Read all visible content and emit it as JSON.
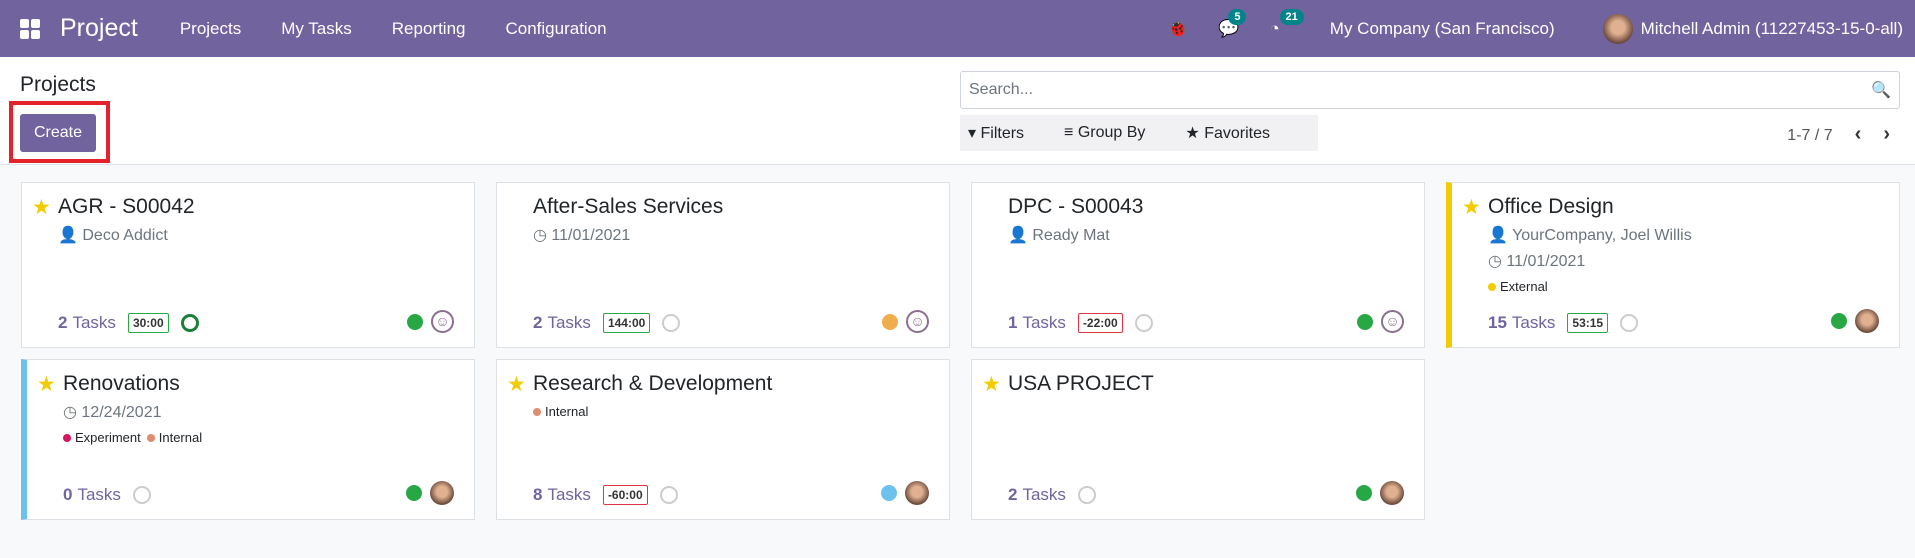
{
  "navbar": {
    "app": "Project",
    "menu": [
      "Projects",
      "My Tasks",
      "Reporting",
      "Configuration"
    ],
    "messages_count": "5",
    "activities_count": "21",
    "company": "My Company (San Francisco)",
    "user": "Mitchell Admin (11227453-15-0-all)"
  },
  "control": {
    "title": "Projects",
    "create": "Create",
    "search_placeholder": "Search...",
    "filters": "Filters",
    "group_by": "Group By",
    "favorites": "Favorites",
    "pager": "1-7 / 7"
  },
  "projects": [
    {
      "name": "AGR - S00042",
      "favorite": true,
      "customer": "Deco Addict",
      "tasks": "2",
      "tasks_label": "Tasks",
      "time": "30:00",
      "status": "#28a745"
    },
    {
      "name": "After-Sales Services",
      "favorite": false,
      "date": "11/01/2021",
      "tasks": "2",
      "tasks_label": "Tasks",
      "time": "144:00",
      "status": "#f0ad4e"
    },
    {
      "name": "DPC - S00043",
      "favorite": false,
      "customer": "Ready Mat",
      "tasks": "1",
      "tasks_label": "Tasks",
      "time": "-22:00",
      "status": "#28a745"
    },
    {
      "name": "Office Design",
      "favorite": true,
      "customer": "YourCompany, Joel Willis",
      "date": "11/01/2021",
      "tags": [
        "External"
      ],
      "tasks": "15",
      "tasks_label": "Tasks",
      "time": "53:15",
      "status": "#28a745",
      "color": "#f3cc00"
    },
    {
      "name": "Renovations",
      "favorite": true,
      "date": "12/24/2021",
      "tags": [
        "Experiment",
        "Internal"
      ],
      "tasks": "0",
      "tasks_label": "Tasks",
      "status": "#28a745",
      "color": "#6cc1ed"
    },
    {
      "name": "Research & Development",
      "favorite": true,
      "tags": [
        "Internal"
      ],
      "tasks": "8",
      "tasks_label": "Tasks",
      "time": "-60:00",
      "status": "#6cc1ed"
    },
    {
      "name": "USA PROJECT",
      "favorite": true,
      "tasks": "2",
      "tasks_label": "Tasks",
      "status": "#28a745"
    }
  ]
}
